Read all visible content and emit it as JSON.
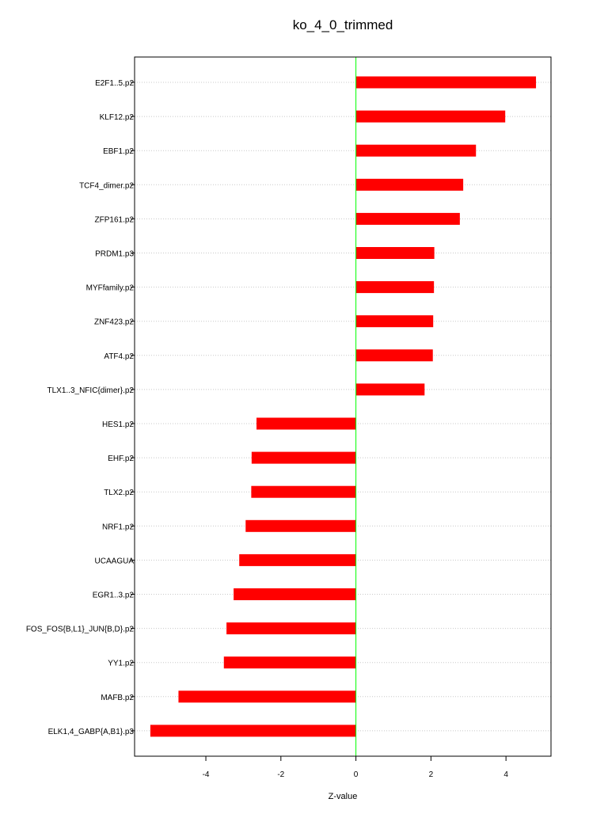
{
  "chart_data": {
    "type": "bar",
    "orientation": "horizontal",
    "title": "ko_4_0_trimmed",
    "xlabel": "Z-value",
    "ylabel": "",
    "xlim": [
      -5.9,
      5.2
    ],
    "xticks": [
      -4,
      -2,
      0,
      2,
      4
    ],
    "grid": true,
    "bar_color": "#ff0000",
    "zero_line_color": "#00ff00",
    "categories": [
      "E2F1..5.p2",
      "KLF12.p2",
      "EBF1.p2",
      "TCF4_dimer.p2",
      "ZFP161.p2",
      "PRDM1.p3",
      "MYFfamily.p2",
      "ZNF423.p2",
      "ATF4.p2",
      "TLX1..3_NFIC{dimer}.p2",
      "HES1.p2",
      "EHF.p2",
      "TLX2.p2",
      "NRF1.p2",
      "UCAAGUA",
      "EGR1..3.p2",
      "FOS_FOS{B,L1}_JUN{B,D}.p2",
      "YY1.p2",
      "MAFB.p2",
      "ELK1,4_GABP{A,B1}.p3"
    ],
    "values": [
      4.8,
      3.98,
      3.2,
      2.86,
      2.77,
      2.09,
      2.08,
      2.06,
      2.05,
      1.83,
      -2.65,
      -2.78,
      -2.79,
      -2.94,
      -3.11,
      -3.26,
      -3.45,
      -3.52,
      -4.73,
      -5.48
    ]
  }
}
